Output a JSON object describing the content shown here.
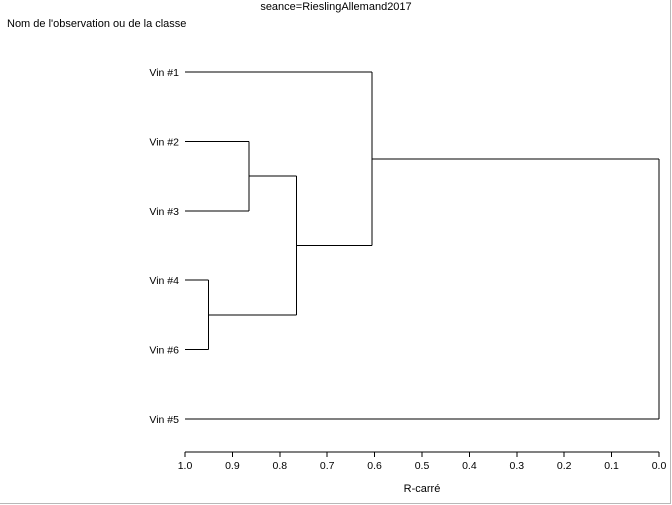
{
  "title": "seance=RieslingAllemand2017",
  "heading": "Nom de l'observation ou de la classe",
  "chart_data": {
    "type": "dendrogram",
    "orientation": "horizontal",
    "xlabel": "R-carré",
    "xlim": [
      1.0,
      0.0
    ],
    "xticks": [
      "1.0",
      "0.9",
      "0.8",
      "0.7",
      "0.6",
      "0.5",
      "0.4",
      "0.3",
      "0.2",
      "0.1",
      "0.0"
    ],
    "leaves": [
      "Vin #1",
      "Vin #2",
      "Vin #3",
      "Vin #4",
      "Vin #6",
      "Vin #5"
    ],
    "merges": [
      {
        "left": "Vin #4",
        "right": "Vin #6",
        "height": 0.95
      },
      {
        "left": "Vin #2",
        "right": "Vin #3",
        "height": 0.865
      },
      {
        "left": "Vin #2,#3",
        "right": "Vin #4,#6",
        "height": 0.765
      },
      {
        "left": "Vin #1",
        "right": "Vin #2,#3,#4,#6",
        "height": 0.605
      },
      {
        "left": "Vin #1,#2,#3,#4,#6",
        "right": "Vin #5",
        "height": 0.0
      }
    ]
  }
}
